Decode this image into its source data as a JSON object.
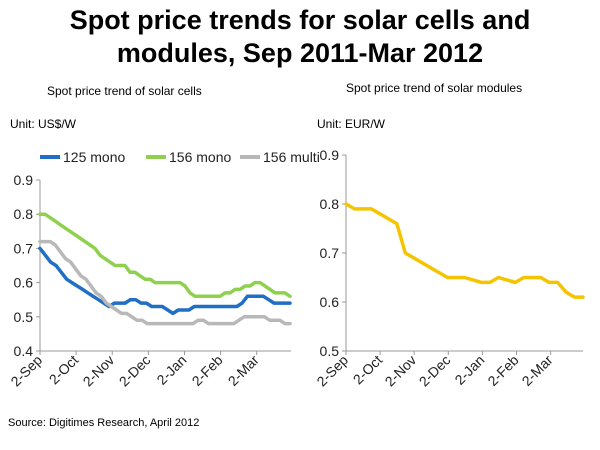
{
  "title_line1": "Spot price trends for solar cells and",
  "title_line2": "modules, Sep 2011-Mar 2012",
  "source": "Source: Digitimes Research, April 2012",
  "chart_data": [
    {
      "type": "line",
      "title": "Spot price trend of solar cells",
      "unit_label": "Unit: US$/W",
      "ylim": [
        0.4,
        0.9
      ],
      "yticks": [
        "0.4",
        "0.5",
        "0.6",
        "0.7",
        "0.8",
        "0.9"
      ],
      "xticks": [
        "2-Sep",
        "2-Oct",
        "2-Nov",
        "2-Dec",
        "2-Jan",
        "2-Feb",
        "2-Mar"
      ],
      "grid": false,
      "legend_position": "top",
      "series": [
        {
          "name": "125 mono",
          "color": "#1f6fc5",
          "values": [
            0.7,
            0.68,
            0.66,
            0.65,
            0.63,
            0.61,
            0.6,
            0.59,
            0.58,
            0.57,
            0.56,
            0.55,
            0.54,
            0.53,
            0.54,
            0.54,
            0.54,
            0.55,
            0.55,
            0.54,
            0.54,
            0.53,
            0.53,
            0.53,
            0.52,
            0.51,
            0.52,
            0.52,
            0.52,
            0.53,
            0.53,
            0.53,
            0.53,
            0.53,
            0.53,
            0.53,
            0.53,
            0.53,
            0.54,
            0.56,
            0.56,
            0.56,
            0.56,
            0.55,
            0.54,
            0.54,
            0.54,
            0.54
          ]
        },
        {
          "name": "156 mono",
          "color": "#8fd14f",
          "values": [
            0.8,
            0.8,
            0.79,
            0.78,
            0.77,
            0.76,
            0.75,
            0.74,
            0.73,
            0.72,
            0.71,
            0.7,
            0.68,
            0.67,
            0.66,
            0.65,
            0.65,
            0.65,
            0.63,
            0.63,
            0.62,
            0.61,
            0.61,
            0.6,
            0.6,
            0.6,
            0.6,
            0.6,
            0.6,
            0.59,
            0.57,
            0.56,
            0.56,
            0.56,
            0.56,
            0.56,
            0.56,
            0.57,
            0.57,
            0.58,
            0.58,
            0.59,
            0.59,
            0.6,
            0.6,
            0.59,
            0.58,
            0.57,
            0.57,
            0.57,
            0.56
          ]
        },
        {
          "name": "156 multi",
          "color": "#b8b8b8",
          "values": [
            0.72,
            0.72,
            0.72,
            0.71,
            0.69,
            0.67,
            0.66,
            0.64,
            0.62,
            0.61,
            0.59,
            0.57,
            0.56,
            0.54,
            0.53,
            0.52,
            0.51,
            0.51,
            0.5,
            0.49,
            0.49,
            0.48,
            0.48,
            0.48,
            0.48,
            0.48,
            0.48,
            0.48,
            0.48,
            0.48,
            0.48,
            0.49,
            0.49,
            0.48,
            0.48,
            0.48,
            0.48,
            0.48,
            0.48,
            0.49,
            0.5,
            0.5,
            0.5,
            0.5,
            0.5,
            0.49,
            0.49,
            0.49,
            0.48,
            0.48
          ]
        }
      ]
    },
    {
      "type": "line",
      "title": "Spot price trend of solar modules",
      "unit_label": "Unit: EUR/W",
      "ylim": [
        0.5,
        0.9
      ],
      "yticks": [
        "0.5",
        "0.6",
        "0.7",
        "0.8",
        "0.9"
      ],
      "xticks": [
        "2-Sep",
        "2-Oct",
        "2-Nov",
        "2-Dec",
        "2-Jan",
        "2-Feb",
        "2-Mar"
      ],
      "grid": false,
      "series": [
        {
          "color": "#f5c400",
          "values": [
            0.8,
            0.79,
            0.79,
            0.79,
            0.78,
            0.77,
            0.76,
            0.7,
            0.69,
            0.68,
            0.67,
            0.66,
            0.65,
            0.65,
            0.65,
            0.645,
            0.64,
            0.64,
            0.65,
            0.645,
            0.64,
            0.65,
            0.65,
            0.65,
            0.64,
            0.64,
            0.62,
            0.61,
            0.61
          ]
        }
      ]
    }
  ]
}
